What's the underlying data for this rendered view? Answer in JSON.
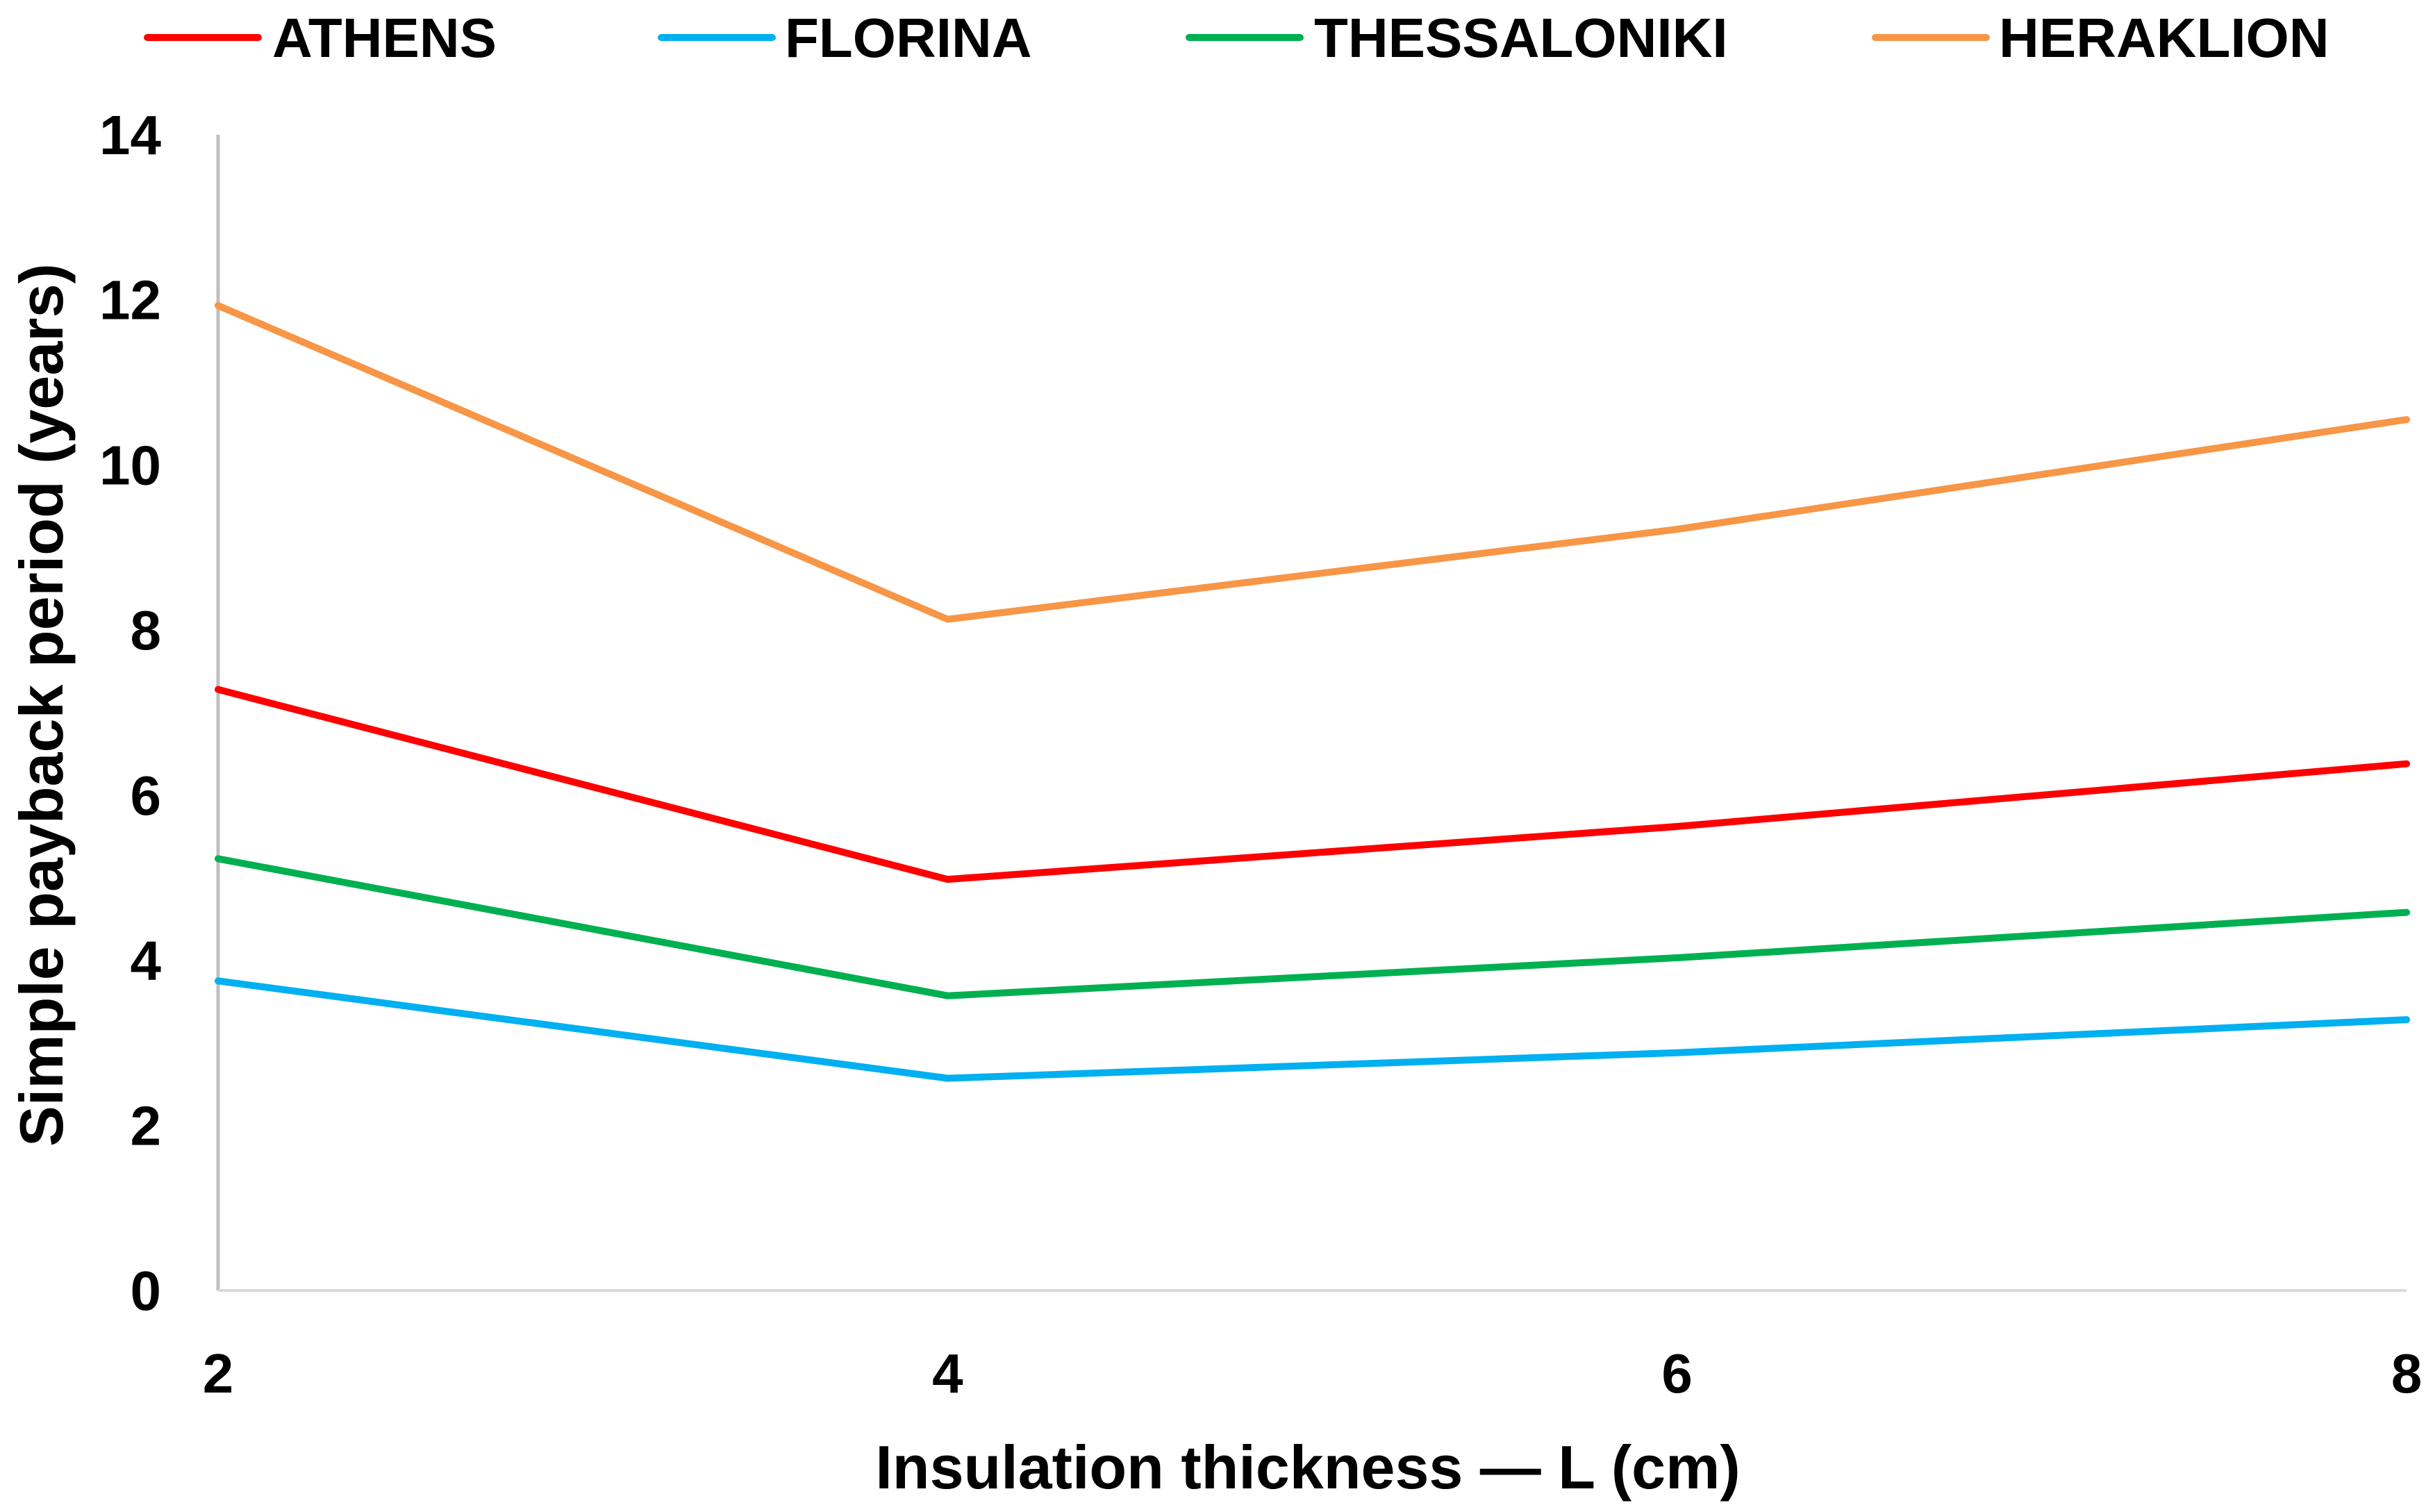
{
  "chart_data": {
    "type": "line",
    "title": "",
    "xlabel": "Insulation thickness — L (cm)",
    "ylabel": "Simple payback period (years)",
    "x": [
      2,
      4,
      6,
      8
    ],
    "xlim": [
      2,
      8
    ],
    "ylim": [
      0,
      14
    ],
    "xticks": [
      "2",
      "4",
      "6",
      "8"
    ],
    "yticks": [
      "0",
      "2",
      "4",
      "6",
      "8",
      "10",
      "12",
      "14"
    ],
    "grid": false,
    "legend_position": "top",
    "series": [
      {
        "name": "ATHENS",
        "color": "#ff0000",
        "values": [
          7.28,
          4.98,
          5.62,
          6.38
        ]
      },
      {
        "name": "FLORINA",
        "color": "#00b0f0",
        "values": [
          3.75,
          2.57,
          2.88,
          3.28
        ]
      },
      {
        "name": "THESSALONIKI",
        "color": "#00b050",
        "values": [
          5.23,
          3.57,
          4.03,
          4.58
        ]
      },
      {
        "name": "HERAKLION",
        "color": "#f79646",
        "values": [
          11.93,
          8.13,
          9.22,
          10.55
        ]
      }
    ]
  }
}
